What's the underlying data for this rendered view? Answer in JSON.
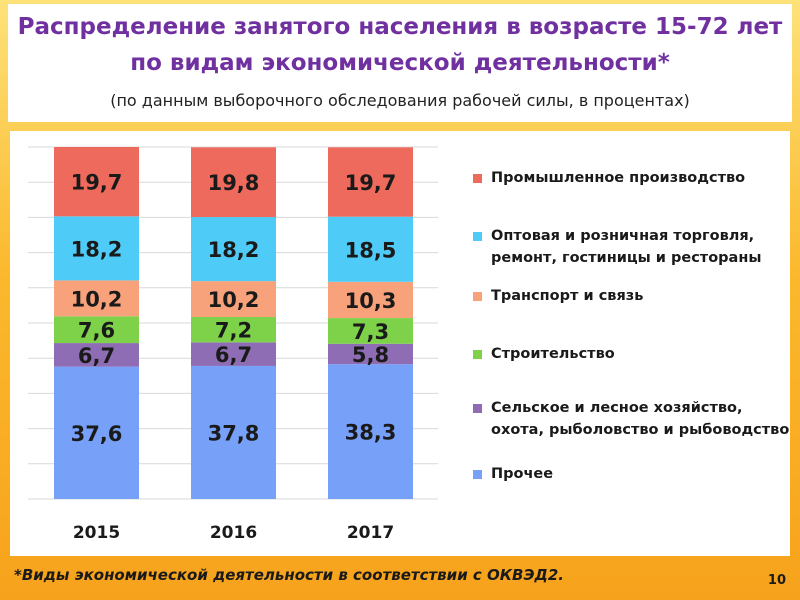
{
  "header": {
    "title_line1": "Распределение занятого населения в возрасте 15-72 лет",
    "title_line2": "по видам экономической деятельности*",
    "subtitle": "(по данным выборочного обследования рабочей силы, в процентах)"
  },
  "footnote": "*Виды экономической деятельности в соответствии с ОКВЭД2.",
  "page_number": "10",
  "chart_data": {
    "type": "bar",
    "stacked": true,
    "categories": [
      "2015",
      "2016",
      "2017"
    ],
    "series": [
      {
        "name": "Прочее",
        "color": "#77a0f8",
        "values": [
          37.6,
          37.8,
          38.3
        ],
        "labels": [
          "37,6",
          "37,8",
          "38,3"
        ]
      },
      {
        "name": "Сельское и лесное хозяйство, охота, рыболовство и рыбоводство",
        "color": "#8e6db5",
        "values": [
          6.7,
          6.7,
          5.8
        ],
        "labels": [
          "6,7",
          "6,7",
          "5,8"
        ]
      },
      {
        "name": "Строительство",
        "color": "#7dd24a",
        "values": [
          7.6,
          7.2,
          7.3
        ],
        "labels": [
          "7,6",
          "7,2",
          "7,3"
        ]
      },
      {
        "name": "Транспорт и связь",
        "color": "#f7a27a",
        "values": [
          10.2,
          10.2,
          10.3
        ],
        "labels": [
          "10,2",
          "10,2",
          "10,3"
        ]
      },
      {
        "name": "Оптовая и розничная торговля, ремонт, гостиницы и рестораны",
        "color": "#4ecbf7",
        "values": [
          18.2,
          18.2,
          18.5
        ],
        "labels": [
          "18,2",
          "18,2",
          "18,5"
        ]
      },
      {
        "name": "Промышленное производство",
        "color": "#ee6a5c",
        "values": [
          19.7,
          19.8,
          19.7
        ],
        "labels": [
          "19,7",
          "19,8",
          "19,7"
        ]
      }
    ],
    "legend": {
      "position": "right",
      "order": [
        {
          "lines": [
            "Промышленное производство"
          ],
          "color": "#ee6a5c"
        },
        {
          "lines": [
            "Оптовая и розничная торговля,",
            "ремонт, гостиницы и рестораны"
          ],
          "color": "#4ecbf7"
        },
        {
          "lines": [
            "Транспорт и связь"
          ],
          "color": "#f7a27a"
        },
        {
          "lines": [
            "Строительство"
          ],
          "color": "#7dd24a"
        },
        {
          "lines": [
            "Сельское и лесное хозяйство,",
            "охота, рыболовство и рыбоводство"
          ],
          "color": "#8e6db5"
        },
        {
          "lines": [
            "Прочее"
          ],
          "color": "#77a0f8"
        }
      ]
    },
    "ylim": [
      0,
      100
    ],
    "grid": true
  }
}
